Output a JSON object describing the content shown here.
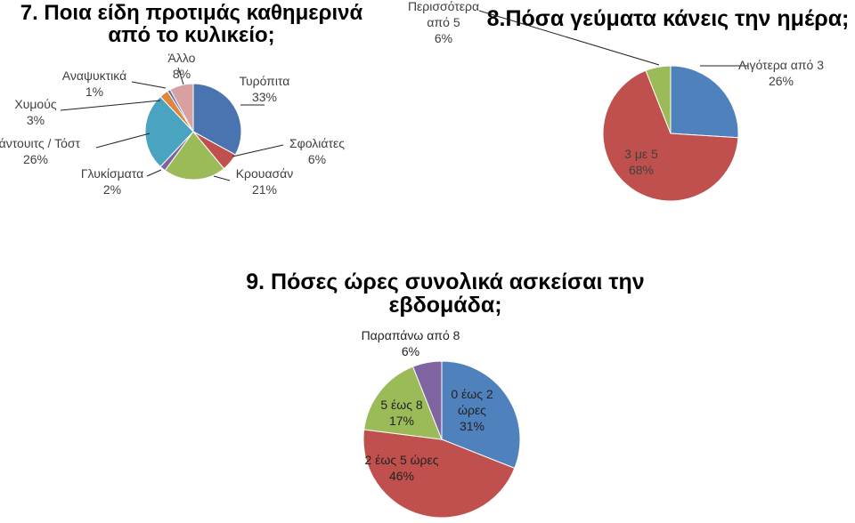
{
  "titles": {
    "t1": "7. Ποια είδη προτιμάς καθημερινά από το κυλικείο;",
    "t2": "8.Πόσα γεύματα κάνεις την ημέρα;",
    "t3": "9. Πόσες ώρες συνολικά ασκείσαι την εβδομάδα;"
  },
  "chart_data": [
    {
      "type": "pie",
      "title": "7. Ποια είδη προτιμάς καθημερινά από το κυλικείο;",
      "categories": [
        "Τυρόπιτα",
        "Σφολιάτες",
        "Κρουασάν",
        "Γλυκίσματα",
        "Σάντουιτς / Τόστ",
        "Χυμούς",
        "Αναψυκτικά",
        "Άλλο"
      ],
      "values": [
        33,
        6,
        21,
        2,
        26,
        3,
        1,
        8
      ],
      "labels": [
        "33%",
        "6%",
        "21%",
        "2%",
        "26%",
        "3%",
        "1%",
        "8%"
      ],
      "colors": [
        "#4a74b0",
        "#c0504d",
        "#9bbb59",
        "#7f62a0",
        "#4aa3c0",
        "#e0863a",
        "#4f6fb5",
        "#d9a0a0"
      ]
    },
    {
      "type": "pie",
      "title": "8.Πόσα γεύματα κάνεις την ημέρα;",
      "categories": [
        "Λιγότερα από 3",
        "3 με 5",
        "Περισσότερα από 5"
      ],
      "values": [
        26,
        68,
        6
      ],
      "labels": [
        "26%",
        "68%",
        "6%"
      ],
      "colors": [
        "#4f81bd",
        "#c0504d",
        "#9bbb59"
      ]
    },
    {
      "type": "pie",
      "title": "9. Πόσες ώρες συνολικά ασκείσαι την εβδομάδα;",
      "categories": [
        "0 έως 2 ώρες",
        "2 έως 5 ώρες",
        "5 έως 8",
        "Παραπάνω από 8"
      ],
      "values": [
        31,
        46,
        17,
        6
      ],
      "labels": [
        "31%",
        "46%",
        "17%",
        "6%"
      ],
      "colors": [
        "#4f81bd",
        "#c0504d",
        "#9bbb59",
        "#8064a2"
      ]
    }
  ]
}
